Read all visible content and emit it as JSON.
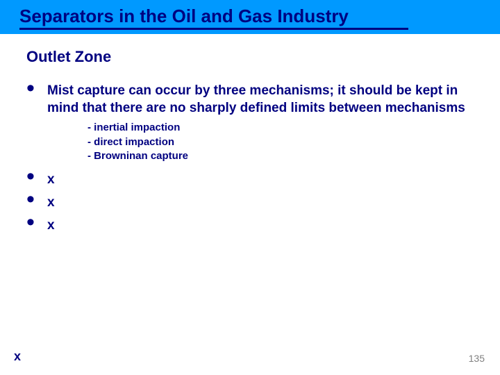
{
  "colors": {
    "title_bar_bg": "#0099ff",
    "heading_color": "#000080",
    "page_num_color": "#808080",
    "background": "#ffffff"
  },
  "title": "Separators in the Oil and Gas Industry",
  "subtitle": "Outlet Zone",
  "bullets": {
    "main": "Mist capture can occur by three mechanisms; it should be kept in mind that there are no sharply defined limits between mechanisms",
    "sub1": "- inertial impaction",
    "sub2": "- direct impaction",
    "sub3": "- Browninan capture",
    "x1": "x",
    "x2": "x",
    "x3": "x"
  },
  "footer_x": "x",
  "page_number": "135"
}
